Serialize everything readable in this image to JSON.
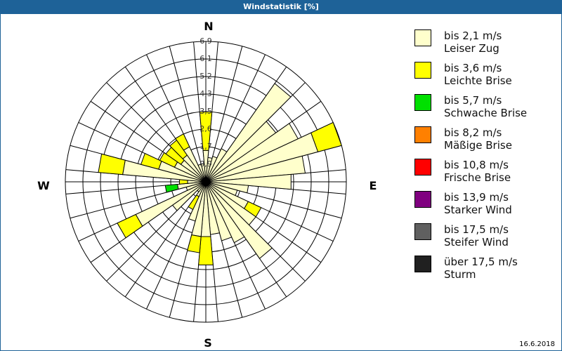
{
  "title": "Windstatistik [%]",
  "date": "16.6.2018",
  "compass": {
    "n": "N",
    "e": "E",
    "s": "S",
    "w": "W"
  },
  "legend": [
    {
      "speed": "bis 2,1 m/s",
      "name": "Leiser Zug",
      "color": "#ffffcc"
    },
    {
      "speed": "bis 3,6 m/s",
      "name": "Leichte Brise",
      "color": "#ffff00"
    },
    {
      "speed": "bis 5,7 m/s",
      "name": "Schwache Brise",
      "color": "#00e000"
    },
    {
      "speed": "bis 8,2 m/s",
      "name": "Mäßige Brise",
      "color": "#ff8000"
    },
    {
      "speed": "bis 10,8 m/s",
      "name": "Frische Brise",
      "color": "#ff0000"
    },
    {
      "speed": "bis 13,9 m/s",
      "name": "Starker Wind",
      "color": "#800080"
    },
    {
      "speed": "bis 17,5 m/s",
      "name": "Steifer Wind",
      "color": "#606060"
    },
    {
      "speed": "über 17,5 m/s",
      "name": "Sturm",
      "color": "#202020"
    }
  ],
  "chart_data": {
    "type": "wind-rose",
    "title": "Windstatistik [%]",
    "unit": "%",
    "ring_labels": [
      "0,9",
      "1,7",
      "2,6",
      "3,5",
      "4,3",
      "5,2",
      "6,1",
      "6,9"
    ],
    "rmax": 6.9,
    "sectors_deg": [
      0,
      10,
      20,
      30,
      40,
      50,
      60,
      70,
      80,
      90,
      100,
      110,
      120,
      130,
      140,
      150,
      160,
      170,
      180,
      190,
      200,
      210,
      220,
      230,
      240,
      250,
      260,
      270,
      280,
      290,
      300,
      310,
      320,
      330,
      340,
      350
    ],
    "series": [
      {
        "name": "Leiser Zug",
        "values": [
          1.55,
          1.2,
          1.3,
          1.8,
          5.9,
          4.2,
          5.0,
          5.7,
          4.9,
          4.2,
          2.1,
          1.6,
          2.3,
          3.0,
          4.6,
          3.3,
          3.0,
          2.6,
          2.7,
          2.7,
          2.0,
          0.8,
          0.6,
          2.0,
          3.8,
          1.0,
          1.4,
          0.9,
          4.1,
          2.4,
          1.7,
          1.5,
          1.6,
          1.9,
          0.9,
          0.9
        ]
      },
      {
        "name": "Leichte Brise",
        "values": [
          1.9,
          0,
          0,
          0,
          0,
          0,
          0,
          1.2,
          0,
          0,
          0,
          0,
          0.7,
          0,
          0,
          0,
          0,
          0,
          1.4,
          0.8,
          0,
          0.7,
          0,
          0,
          1.0,
          0,
          0,
          0.4,
          1.2,
          0.9,
          0.8,
          0.9,
          0.9,
          0.7,
          0,
          0
        ]
      },
      {
        "name": "Schwache Brise",
        "values": [
          0,
          0,
          0,
          0,
          0,
          0,
          0,
          0,
          0,
          0,
          0,
          0,
          0,
          0,
          0,
          0,
          0,
          0,
          0,
          0,
          0,
          0,
          0,
          0,
          0,
          0,
          0.6,
          0,
          0,
          0,
          0,
          0,
          0,
          0,
          0,
          0
        ]
      }
    ]
  }
}
